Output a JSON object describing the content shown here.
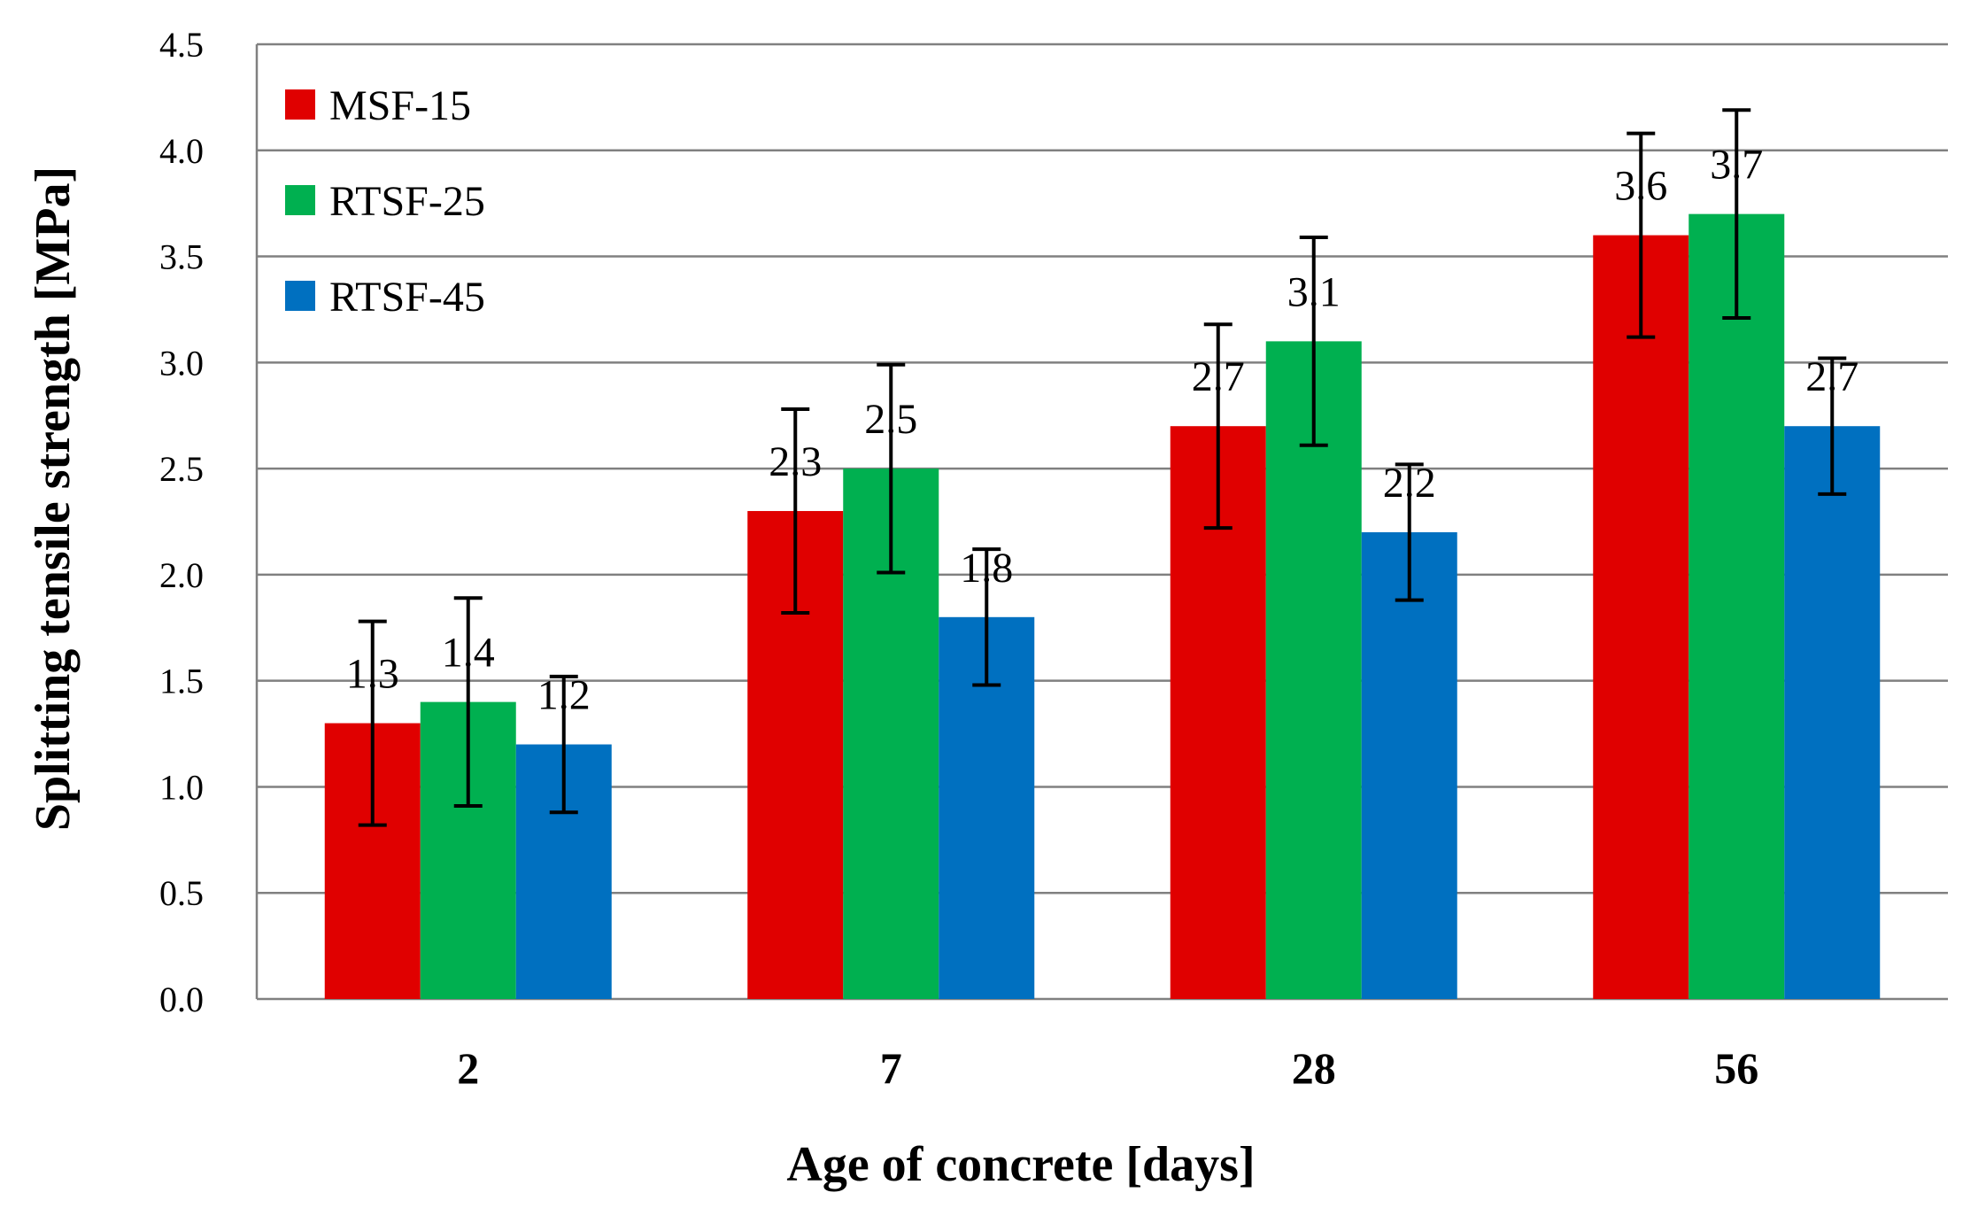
{
  "chart_data": {
    "type": "bar",
    "title": "",
    "xlabel": "Age of concrete [days]",
    "ylabel": "Splitting tensile strength  [MPa]",
    "categories": [
      "2",
      "7",
      "28",
      "56"
    ],
    "ylim": [
      0,
      4.5
    ],
    "yticks": [
      "0.0",
      "0.5",
      "1.0",
      "1.5",
      "2.0",
      "2.5",
      "3.0",
      "3.5",
      "4.0",
      "4.5"
    ],
    "grid": true,
    "legend_position": "top-left",
    "series": [
      {
        "name": "MSF-15",
        "color": "#E00000",
        "values": [
          1.3,
          2.3,
          2.7,
          3.6
        ],
        "labels": [
          "1.3",
          "2.3",
          "2.7",
          "3.6"
        ],
        "error": [
          0.48,
          0.48,
          0.48,
          0.48
        ]
      },
      {
        "name": "RTSF-25",
        "color": "#00B050",
        "values": [
          1.4,
          2.5,
          3.1,
          3.7
        ],
        "labels": [
          "1.4",
          "2.5",
          "3.1",
          "3.7"
        ],
        "error": [
          0.49,
          0.49,
          0.49,
          0.49
        ]
      },
      {
        "name": "RTSF-45",
        "color": "#0070C0",
        "values": [
          1.2,
          1.8,
          2.2,
          2.7
        ],
        "labels": [
          "1.2",
          "1.8",
          "2.2",
          "2.7"
        ],
        "error": [
          0.32,
          0.32,
          0.32,
          0.32
        ]
      }
    ]
  }
}
